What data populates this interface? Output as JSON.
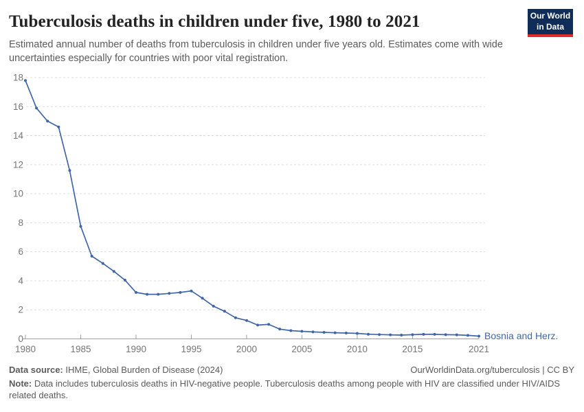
{
  "page": {
    "title": "Tuberculosis deaths in children under five, 1980 to 2021",
    "subtitle": "Estimated annual number of deaths from tuberculosis in children under five years old. Estimates come with wide uncertainties especially for countries with poor vital registration.",
    "logo": {
      "line1": "Our World",
      "line2": "in Data"
    }
  },
  "footer": {
    "source_label": "Data source:",
    "source_text": " IHME, Global Burden of Disease (2024)",
    "attribution": "OurWorldinData.org/tuberculosis | CC BY",
    "note_label": "Note:",
    "note_text": " Data includes tuberculosis deaths in HIV-negative people. Tuberculosis deaths among people with HIV are classified under HIV/AIDS related deaths."
  },
  "colors": {
    "line": "#4065a8",
    "entity_label": "#4065a8",
    "grid": "#dddddd",
    "axis": "#9e9e9e",
    "tick_text": "#757575",
    "logo_bg": "#102d59",
    "logo_stripe": "#dc2e27"
  },
  "chart_data": {
    "type": "line",
    "title": "Tuberculosis deaths in children under five, 1980 to 2021",
    "xlabel": "",
    "ylabel": "",
    "xlim": [
      1980,
      2021
    ],
    "ylim": [
      0,
      18
    ],
    "x_ticks": [
      1980,
      1985,
      1990,
      1995,
      2000,
      2005,
      2010,
      2015,
      2021
    ],
    "y_ticks": [
      0,
      2,
      4,
      6,
      8,
      10,
      12,
      14,
      16,
      18
    ],
    "grid": "horizontal-dashed",
    "legend_position": "end-of-line-label",
    "entity_label": "Bosnia and Herz.",
    "x": [
      1980,
      1981,
      1982,
      1983,
      1984,
      1985,
      1986,
      1987,
      1988,
      1989,
      1990,
      1991,
      1992,
      1993,
      1994,
      1995,
      1996,
      1997,
      1998,
      1999,
      2000,
      2001,
      2002,
      2003,
      2004,
      2005,
      2006,
      2007,
      2008,
      2009,
      2010,
      2011,
      2012,
      2013,
      2014,
      2015,
      2016,
      2017,
      2018,
      2019,
      2020,
      2021
    ],
    "series": [
      {
        "name": "Bosnia and Herz.",
        "color": "#4065a8",
        "values": [
          17.8,
          15.9,
          15.0,
          14.6,
          11.6,
          7.75,
          5.7,
          5.2,
          4.65,
          4.05,
          3.2,
          3.07,
          3.07,
          3.13,
          3.2,
          3.3,
          2.8,
          2.25,
          1.9,
          1.45,
          1.27,
          0.95,
          1.0,
          0.67,
          0.57,
          0.52,
          0.48,
          0.45,
          0.42,
          0.4,
          0.38,
          0.32,
          0.3,
          0.28,
          0.26,
          0.29,
          0.31,
          0.31,
          0.29,
          0.28,
          0.24,
          0.19
        ]
      }
    ]
  }
}
